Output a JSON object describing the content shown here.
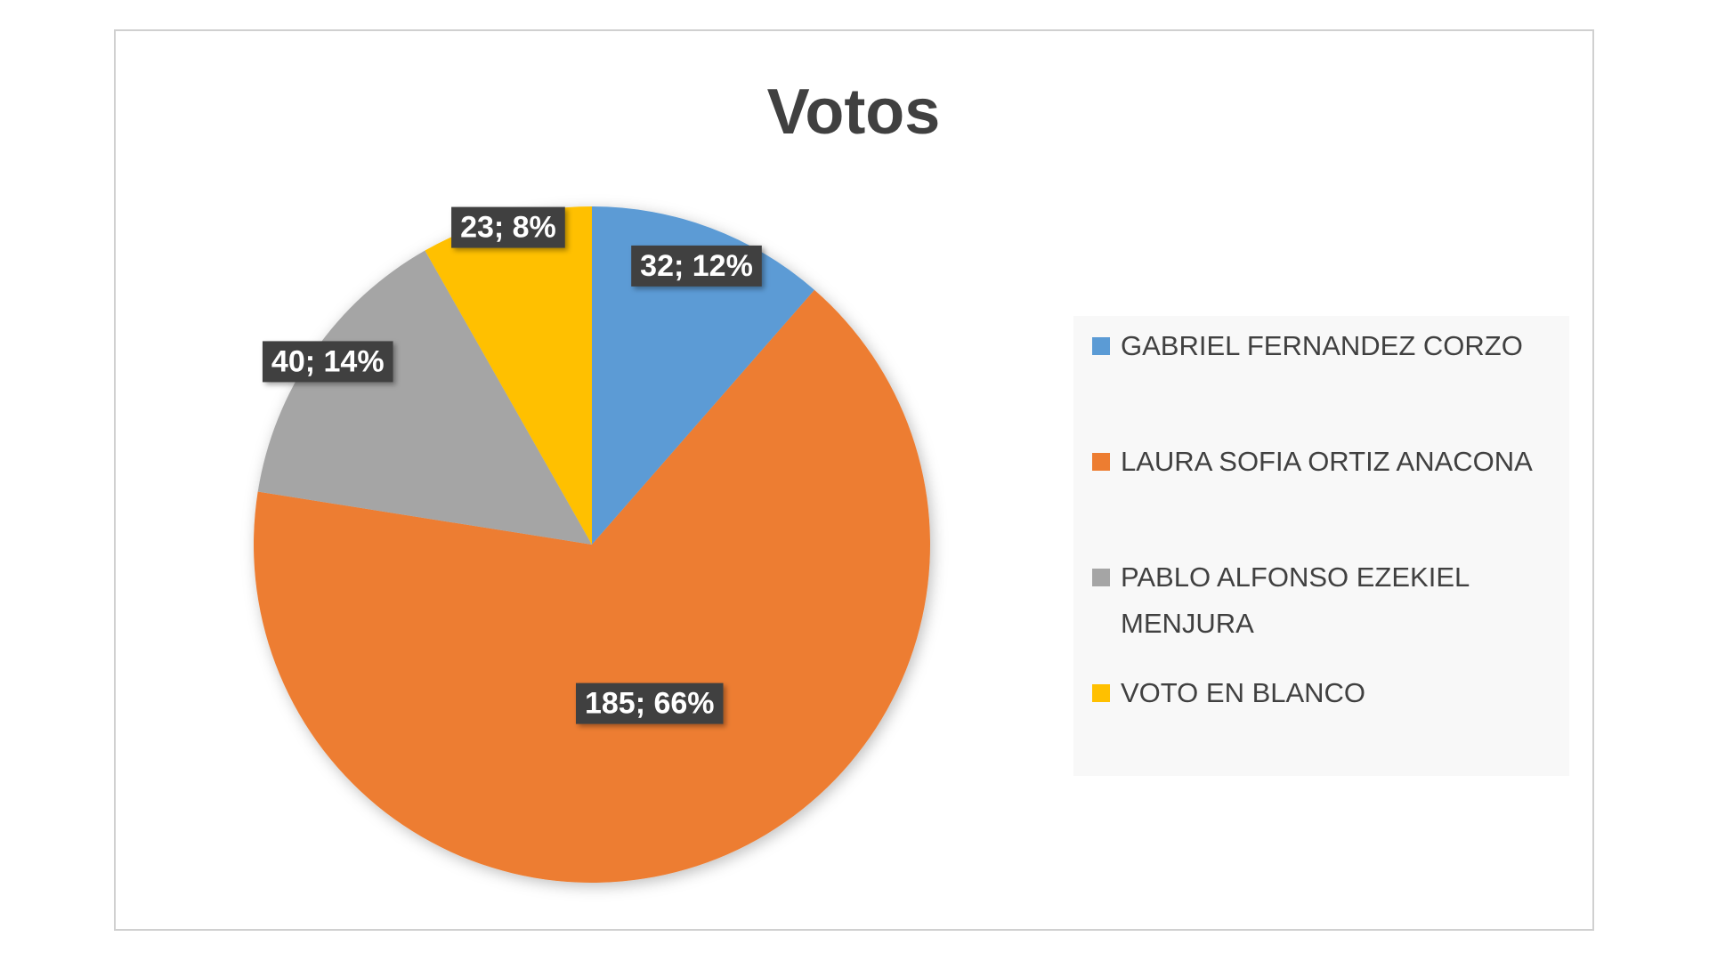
{
  "chart_data": {
    "type": "pie",
    "title": "Votos",
    "categories": [
      "GABRIEL FERNANDEZ CORZO",
      "LAURA SOFIA ORTIZ ANACONA",
      "PABLO ALFONSO EZEKIEL MENJURA",
      "VOTO EN BLANCO"
    ],
    "values": [
      32,
      185,
      40,
      23
    ],
    "value_labels": [
      "32; 12%",
      "185; 66%",
      "40; 14%",
      "23; 8%"
    ],
    "colors": [
      "#5b9bd5",
      "#ed7d31",
      "#a5a5a5",
      "#ffc000"
    ],
    "legend": "right"
  }
}
